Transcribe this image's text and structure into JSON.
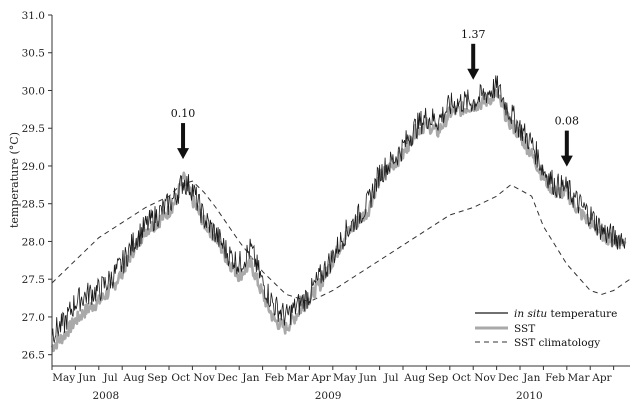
{
  "chart_data": {
    "type": "line",
    "title": "",
    "ylabel": "temperature (°C)",
    "xlabel": "",
    "ylim": [
      26.35,
      31.0
    ],
    "yticks": [
      26.5,
      27.0,
      27.5,
      28.0,
      28.5,
      29.0,
      29.5,
      30.0,
      30.5,
      31.0
    ],
    "ytick_labels": [
      "26.5",
      "27.0",
      "27.5",
      "28.0",
      "28.5",
      "29.0",
      "29.5",
      "30.0",
      "30.5",
      "31.0"
    ],
    "xlim_months": [
      0,
      24.7
    ],
    "x_tick_labels": [
      "May",
      "Jun",
      "Jul",
      "Aug",
      "Sep",
      "Oct",
      "Nov",
      "Dec",
      "Jan",
      "Feb",
      "Mar",
      "Apr",
      "May",
      "Jun",
      "Jul",
      "Aug",
      "Sep",
      "Oct",
      "Nov",
      "Dec",
      "Jan",
      "Feb",
      "Mar",
      "Apr"
    ],
    "year_labels": [
      {
        "text": "2008",
        "month": 2.3
      },
      {
        "text": "2009",
        "month": 11.8
      },
      {
        "text": "2010",
        "month": 20.4
      }
    ],
    "grid": false,
    "legend_position": "bottom-right",
    "series": [
      {
        "name": "in situ temperature",
        "name_italic_part": "in situ",
        "name_rest": " temperature",
        "style": "solid",
        "color": "#1a1a1a",
        "x": [
          0.0,
          0.5,
          1.0,
          1.5,
          2.0,
          2.5,
          3.0,
          3.5,
          4.0,
          4.5,
          5.0,
          5.3,
          5.6,
          6.0,
          6.5,
          7.0,
          7.5,
          8.0,
          8.5,
          9.0,
          9.5,
          10.0,
          10.5,
          11.0,
          11.5,
          12.0,
          12.5,
          13.0,
          13.5,
          14.0,
          14.5,
          15.0,
          15.5,
          16.0,
          16.5,
          17.0,
          17.5,
          18.0,
          18.5,
          19.0,
          19.5,
          20.0,
          20.5,
          21.0,
          21.5,
          22.0,
          22.5,
          23.0,
          23.5,
          24.0,
          24.5
        ],
        "y": [
          26.8,
          26.9,
          27.2,
          27.3,
          27.35,
          27.5,
          27.7,
          28.0,
          28.2,
          28.35,
          28.5,
          28.6,
          28.8,
          28.7,
          28.3,
          28.1,
          27.85,
          27.7,
          27.9,
          27.45,
          27.15,
          27.0,
          27.15,
          27.3,
          27.55,
          27.8,
          28.1,
          28.3,
          28.5,
          28.9,
          29.05,
          29.25,
          29.5,
          29.65,
          29.6,
          29.8,
          29.85,
          29.85,
          29.95,
          30.05,
          29.75,
          29.5,
          29.3,
          28.95,
          28.75,
          28.7,
          28.5,
          28.35,
          28.15,
          28.05,
          28.05
        ],
        "noise": 0.17
      },
      {
        "name": "SST",
        "style": "solid-thick",
        "color": "#a9a9a9",
        "x": [
          0.0,
          0.5,
          1.0,
          1.5,
          2.0,
          2.5,
          3.0,
          3.5,
          4.0,
          4.5,
          5.0,
          5.3,
          5.6,
          6.0,
          6.5,
          7.0,
          7.5,
          8.0,
          8.5,
          9.0,
          9.5,
          10.0,
          10.5,
          11.0,
          11.5,
          12.0,
          12.5,
          13.0,
          13.5,
          14.0,
          14.5,
          15.0,
          15.5,
          16.0,
          16.5,
          17.0,
          17.5,
          18.0,
          18.5,
          19.0,
          19.5,
          20.0,
          20.5,
          21.0,
          21.5,
          22.0,
          22.5,
          23.0,
          23.5,
          24.0,
          24.5
        ],
        "y": [
          26.6,
          26.75,
          26.95,
          27.1,
          27.2,
          27.35,
          27.6,
          27.9,
          28.15,
          28.25,
          28.4,
          28.55,
          28.85,
          28.55,
          28.25,
          28.05,
          27.75,
          27.55,
          27.7,
          27.3,
          26.95,
          26.85,
          27.05,
          27.25,
          27.45,
          27.75,
          28.05,
          28.25,
          28.4,
          28.85,
          29.0,
          29.15,
          29.45,
          29.55,
          29.45,
          29.7,
          29.75,
          29.8,
          29.85,
          29.95,
          29.6,
          29.4,
          29.15,
          28.85,
          28.65,
          28.65,
          28.4,
          28.25,
          28.1,
          28.0,
          28.0
        ],
        "noise": 0.09
      },
      {
        "name": "SST climatology",
        "style": "dashed",
        "color": "#333333",
        "x": [
          0.0,
          1.0,
          2.0,
          3.0,
          4.0,
          5.0,
          5.5,
          6.0,
          6.5,
          7.0,
          8.0,
          9.0,
          10.0,
          11.0,
          12.0,
          13.0,
          14.0,
          15.0,
          16.0,
          17.0,
          18.0,
          19.0,
          19.6,
          20.5,
          21.0,
          22.0,
          23.0,
          23.5,
          24.0,
          24.7
        ],
        "y": [
          27.45,
          27.75,
          28.05,
          28.25,
          28.45,
          28.6,
          28.75,
          28.8,
          28.65,
          28.45,
          28.0,
          27.6,
          27.3,
          27.2,
          27.35,
          27.55,
          27.75,
          27.95,
          28.15,
          28.35,
          28.45,
          28.6,
          28.75,
          28.6,
          28.2,
          27.7,
          27.35,
          27.3,
          27.35,
          27.5
        ]
      }
    ],
    "annotations": [
      {
        "label": "0.10",
        "month": 5.6
      },
      {
        "label": "1.37",
        "month": 18.0
      },
      {
        "label": "0.08",
        "month": 22.0
      }
    ]
  }
}
